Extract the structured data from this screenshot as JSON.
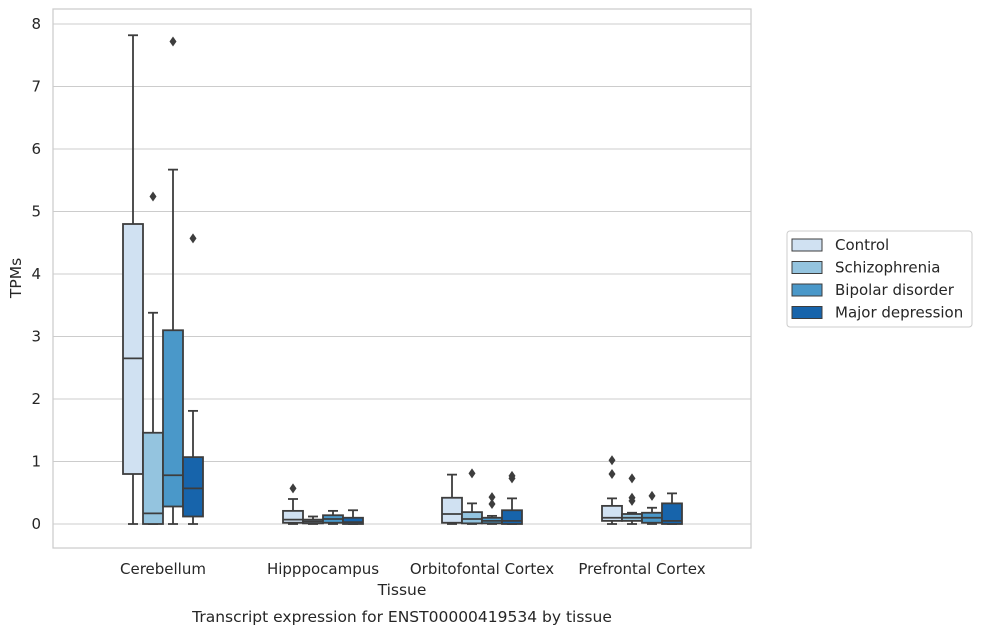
{
  "chart_data": {
    "type": "box",
    "title": "",
    "caption": "Transcript expression for ENST00000419534 by tissue",
    "xlabel": "Tissue",
    "ylabel": "TPMs",
    "ylim": [
      -0.38,
      8.22
    ],
    "yticks": [
      "0",
      "1",
      "2",
      "3",
      "4",
      "5",
      "6",
      "7",
      "8"
    ],
    "grid": "horizontal",
    "legend_position": "right",
    "categories": [
      "Cerebellum",
      "Hipppocampus",
      "Orbitofontal Cortex",
      "Prefrontal Cortex"
    ],
    "series": [
      {
        "name": "Control",
        "color": "#d0e1f2",
        "boxes": [
          {
            "whisker_low": 0.0,
            "q1": 0.8,
            "median": 2.65,
            "q3": 4.8,
            "whisker_high": 7.82,
            "outliers": []
          },
          {
            "whisker_low": 0.0,
            "q1": 0.02,
            "median": 0.07,
            "q3": 0.21,
            "whisker_high": 0.4,
            "outliers": [
              0.57
            ]
          },
          {
            "whisker_low": 0.0,
            "q1": 0.02,
            "median": 0.16,
            "q3": 0.42,
            "whisker_high": 0.79,
            "outliers": []
          },
          {
            "whisker_low": 0.0,
            "q1": 0.05,
            "median": 0.1,
            "q3": 0.29,
            "whisker_high": 0.41,
            "outliers": [
              0.8,
              1.02
            ]
          }
        ]
      },
      {
        "name": "Schizophrenia",
        "color": "#94c4df",
        "boxes": [
          {
            "whisker_low": 0.0,
            "q1": 0.0,
            "median": 0.17,
            "q3": 1.46,
            "whisker_high": 3.38,
            "outliers": [
              5.24
            ]
          },
          {
            "whisker_low": 0.0,
            "q1": 0.01,
            "median": 0.04,
            "q3": 0.07,
            "whisker_high": 0.12,
            "outliers": []
          },
          {
            "whisker_low": 0.0,
            "q1": 0.01,
            "median": 0.08,
            "q3": 0.19,
            "whisker_high": 0.33,
            "outliers": [
              0.81
            ]
          },
          {
            "whisker_low": 0.0,
            "q1": 0.05,
            "median": 0.1,
            "q3": 0.16,
            "whisker_high": 0.18,
            "outliers": [
              0.37,
              0.42,
              0.73
            ]
          }
        ]
      },
      {
        "name": "Bipolar disorder",
        "color": "#4a98c9",
        "boxes": [
          {
            "whisker_low": 0.0,
            "q1": 0.28,
            "median": 0.78,
            "q3": 3.1,
            "whisker_high": 5.67,
            "outliers": [
              7.72
            ]
          },
          {
            "whisker_low": 0.0,
            "q1": 0.02,
            "median": 0.08,
            "q3": 0.14,
            "whisker_high": 0.21,
            "outliers": []
          },
          {
            "whisker_low": 0.0,
            "q1": 0.01,
            "median": 0.05,
            "q3": 0.1,
            "whisker_high": 0.13,
            "outliers": [
              0.32,
              0.43
            ]
          },
          {
            "whisker_low": 0.0,
            "q1": 0.02,
            "median": 0.1,
            "q3": 0.18,
            "whisker_high": 0.26,
            "outliers": [
              0.45
            ]
          }
        ]
      },
      {
        "name": "Major depression",
        "color": "#1764ab",
        "boxes": [
          {
            "whisker_low": 0.0,
            "q1": 0.12,
            "median": 0.57,
            "q3": 1.07,
            "whisker_high": 1.81,
            "outliers": [
              4.57
            ]
          },
          {
            "whisker_low": 0.0,
            "q1": 0.0,
            "median": 0.03,
            "q3": 0.1,
            "whisker_high": 0.22,
            "outliers": []
          },
          {
            "whisker_low": 0.0,
            "q1": 0.0,
            "median": 0.05,
            "q3": 0.22,
            "whisker_high": 0.41,
            "outliers": [
              0.73,
              0.77
            ]
          },
          {
            "whisker_low": 0.0,
            "q1": 0.0,
            "median": 0.05,
            "q3": 0.33,
            "whisker_high": 0.49,
            "outliers": []
          }
        ]
      }
    ]
  }
}
